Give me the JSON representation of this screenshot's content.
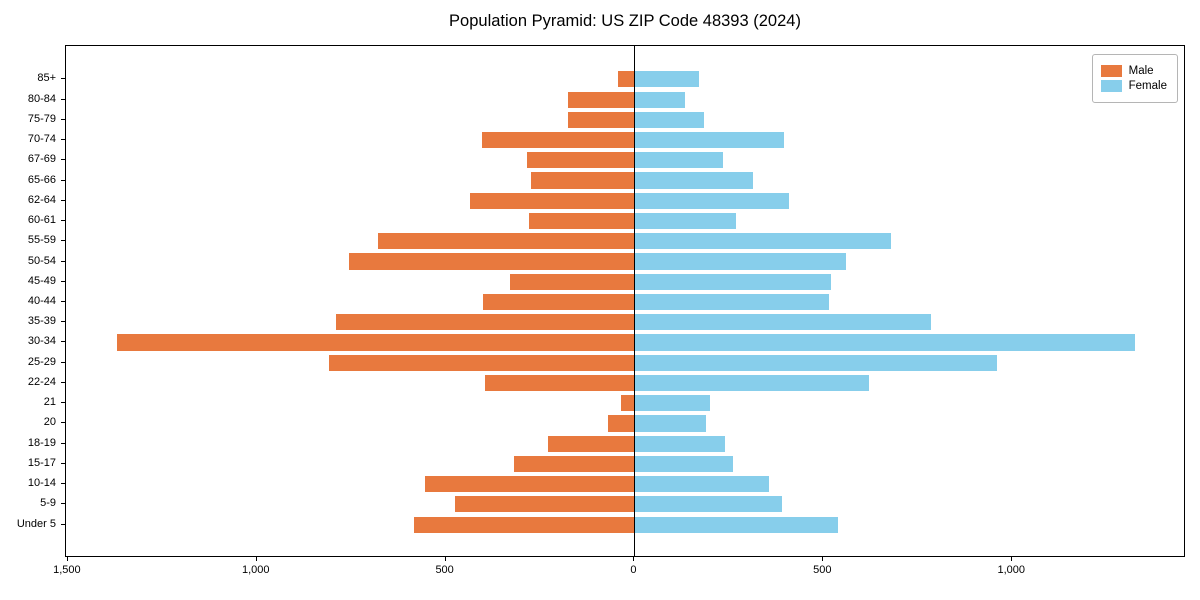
{
  "title": "Population Pyramid: US ZIP Code 48393 (2024)",
  "legend": {
    "male_label": "Male",
    "female_label": "Female"
  },
  "colors": {
    "male": "#e8793e",
    "female": "#87ceeb",
    "axis": "#000000",
    "legend_border": "#b5b5b5"
  },
  "x_axis": {
    "xlim": [
      -1505,
      1460
    ],
    "tick_values": [
      -1500,
      -1000,
      -500,
      0,
      500,
      1000
    ],
    "tick_labels": [
      "1,500",
      "1,000",
      "500",
      "0",
      "500",
      "1,000"
    ]
  },
  "chart_data": {
    "type": "bar",
    "subtype": "population-pyramid",
    "orientation": "horizontal",
    "title": "Population Pyramid: US ZIP Code 48393 (2024)",
    "xlabel": "",
    "ylabel": "",
    "grid": false,
    "legend_position": "upper right",
    "categories": [
      "85+",
      "80-84",
      "75-79",
      "70-74",
      "67-69",
      "65-66",
      "62-64",
      "60-61",
      "55-59",
      "50-54",
      "45-49",
      "40-44",
      "35-39",
      "30-34",
      "25-29",
      "22-24",
      "21",
      "20",
      "18-19",
      "15-17",
      "10-14",
      "5-9",
      "Under 5"
    ],
    "series": [
      {
        "name": "Male",
        "side": "left",
        "color": "#e8793e",
        "values": [
          45,
          175,
          175,
          405,
          285,
          275,
          435,
          280,
          680,
          755,
          330,
          400,
          790,
          1370,
          810,
          395,
          35,
          70,
          230,
          320,
          555,
          475,
          585
        ]
      },
      {
        "name": "Female",
        "side": "right",
        "color": "#87ceeb",
        "values": [
          170,
          135,
          185,
          395,
          235,
          315,
          410,
          270,
          680,
          560,
          520,
          515,
          785,
          1325,
          960,
          620,
          200,
          190,
          240,
          260,
          355,
          390,
          540
        ]
      }
    ]
  }
}
